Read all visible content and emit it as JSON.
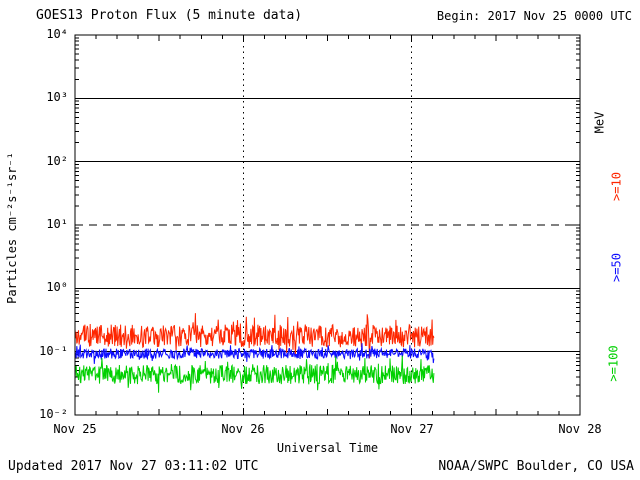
{
  "page": {
    "title": "GOES13 Proton Flux (5 minute data)",
    "begin_label": "Begin: 2017 Nov 25 0000 UTC",
    "updated": "Updated 2017 Nov 27 03:11:02 UTC",
    "credit": "NOAA/SWPC Boulder, CO USA"
  },
  "chart_data": {
    "type": "line",
    "title": "GOES13 Proton Flux (5 minute data)",
    "xlabel": "Universal Time",
    "ylabel": "Particles cm⁻²s⁻¹sr⁻¹",
    "right_axis_label": "MeV",
    "begin": "2017 Nov 25 0000 UTC",
    "updated": "2017 Nov 27 03:11:02 UTC",
    "x_tick_labels": [
      "Nov 25",
      "Nov 26",
      "Nov 27",
      "Nov 28"
    ],
    "x_range_days": [
      0,
      3
    ],
    "y_tick_labels": [
      "10⁴",
      "10³",
      "10²",
      "10¹",
      "10⁰",
      "10⁻¹",
      "10⁻²"
    ],
    "y_tick_exponents": [
      4,
      3,
      2,
      1,
      0,
      -1,
      -2
    ],
    "ylim": [
      0.01,
      10000
    ],
    "yscale": "log",
    "grid": {
      "h_solid_exponents": [
        3,
        2,
        0,
        -1
      ],
      "h_dashed_exponents": [
        1
      ],
      "v_dotted_days": [
        1,
        2
      ]
    },
    "sample_interval_minutes": 5,
    "data_end_day": 2.132,
    "series": [
      {
        "label": ">=10",
        "mev_threshold": 10,
        "color": "#fe2600",
        "approx_mean_flux": 0.18,
        "approx_range": [
          0.08,
          0.45
        ],
        "gen": {
          "base_log10": -0.75,
          "noise_log10": 0.18,
          "seed": 20171125
        }
      },
      {
        "label": ">=50",
        "mev_threshold": 50,
        "color": "#0d0dff",
        "approx_mean_flux": 0.095,
        "approx_range": [
          0.06,
          0.14
        ],
        "gen": {
          "base_log10": -1.03,
          "noise_log10": 0.08,
          "seed": 5050
        }
      },
      {
        "label": ">=100",
        "mev_threshold": 100,
        "color": "#00d000",
        "approx_mean_flux": 0.045,
        "approx_range": [
          0.02,
          0.09
        ],
        "gen": {
          "base_log10": -1.36,
          "noise_log10": 0.15,
          "seed": 100100
        }
      }
    ]
  }
}
